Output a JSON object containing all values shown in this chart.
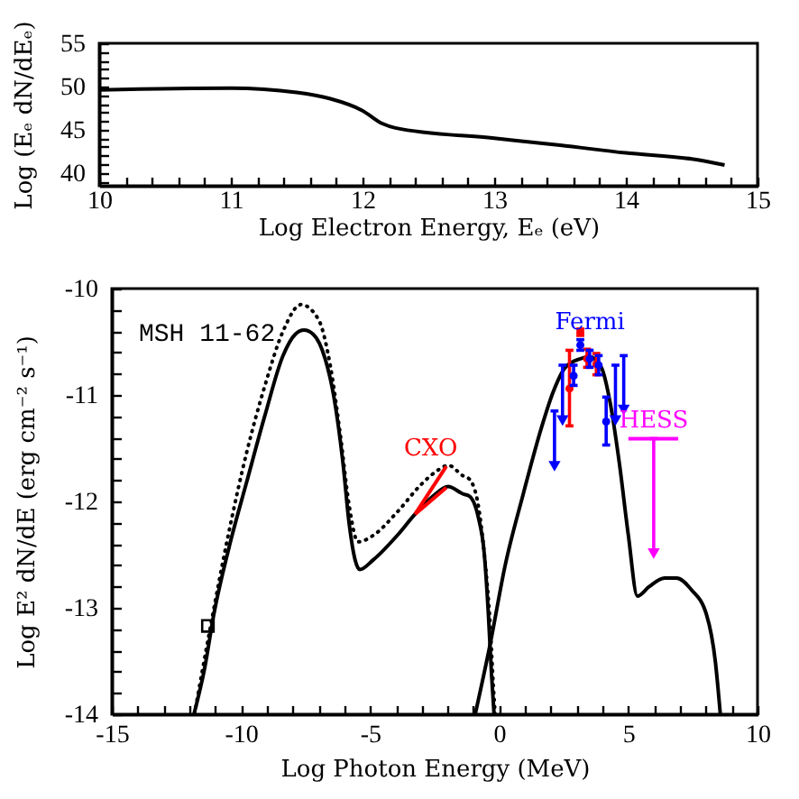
{
  "chart_data": [
    {
      "type": "line",
      "xlabel": "Log Electron Energy, Eₑ (eV)",
      "ylabel": "Log (Eₑ dN/dEₑ)",
      "xlim": [
        10,
        15
      ],
      "ylim": [
        38.5,
        55
      ],
      "xticks": [
        10,
        {
          "value": 10.2,
          "label": null
        },
        {
          "value": 10.4,
          "label": null
        },
        {
          "value": 10.6,
          "label": null
        },
        {
          "value": 10.8,
          "label": null
        },
        11,
        {
          "value": 11.2,
          "label": null
        },
        {
          "value": 11.4,
          "label": null
        },
        {
          "value": 11.6,
          "label": null
        },
        {
          "value": 11.8,
          "label": null
        },
        12,
        {
          "value": 12.2,
          "label": null
        },
        {
          "value": 12.4,
          "label": null
        },
        {
          "value": 12.6,
          "label": null
        },
        {
          "value": 12.8,
          "label": null
        },
        13,
        {
          "value": 13.2,
          "label": null
        },
        {
          "value": 13.4,
          "label": null
        },
        {
          "value": 13.6,
          "label": null
        },
        {
          "value": 13.8,
          "label": null
        },
        14,
        {
          "value": 14.2,
          "label": null
        },
        {
          "value": 14.4,
          "label": null
        },
        {
          "value": 14.6,
          "label": null
        },
        {
          "value": 14.8,
          "label": null
        },
        15
      ],
      "yticks": [
        {
          "value": 39,
          "label": null
        },
        40,
        {
          "value": 41,
          "label": null
        },
        {
          "value": 42,
          "label": null
        },
        {
          "value": 43,
          "label": null
        },
        {
          "value": 44,
          "label": null
        },
        45,
        {
          "value": 46,
          "label": null
        },
        {
          "value": 47,
          "label": null
        },
        {
          "value": 48,
          "label": null
        },
        {
          "value": 49,
          "label": null
        },
        50,
        {
          "value": 51,
          "label": null
        },
        {
          "value": 52,
          "label": null
        },
        {
          "value": 53,
          "label": null
        },
        {
          "value": 54,
          "label": null
        },
        55
      ],
      "x": [
        10.0,
        11.0,
        11.5,
        11.75,
        12.0,
        12.15,
        12.25,
        13.0,
        13.5,
        14.0,
        14.5,
        14.75
      ],
      "series": [
        {
          "color": "#000000",
          "values": [
            49.6,
            49.8,
            49.3,
            48.6,
            47.2,
            45.7,
            45.2,
            44.0,
            43.2,
            42.3,
            41.6,
            40.9
          ]
        }
      ]
    },
    {
      "type": "line",
      "xlabel": "Log Photon Energy (MeV)",
      "ylabel": "Log E² dN/dE (erg cm⁻² s⁻¹)",
      "xlim": [
        -15,
        10
      ],
      "ylim": [
        -14,
        -10
      ],
      "annotations": [
        "MSH 11-62"
      ],
      "xticks": [
        -15,
        {
          "value": -14,
          "label": null
        },
        {
          "value": -13,
          "label": null
        },
        {
          "value": -12,
          "label": null
        },
        {
          "value": -11,
          "label": null
        },
        -10,
        {
          "value": -9,
          "label": null
        },
        {
          "value": -8,
          "label": null
        },
        {
          "value": -7,
          "label": null
        },
        {
          "value": -6,
          "label": null
        },
        -5,
        {
          "value": -4,
          "label": null
        },
        {
          "value": -3,
          "label": null
        },
        {
          "value": -2,
          "label": null
        },
        {
          "value": -1,
          "label": null
        },
        0,
        {
          "value": 1,
          "label": null
        },
        {
          "value": 2,
          "label": null
        },
        {
          "value": 3,
          "label": null
        },
        {
          "value": 4,
          "label": null
        },
        5,
        {
          "value": 6,
          "label": null
        },
        {
          "value": 7,
          "label": null
        },
        {
          "value": 8,
          "label": null
        },
        {
          "value": 9,
          "label": null
        },
        10
      ],
      "yticks": [
        -14,
        {
          "value": -13.8,
          "label": null
        },
        {
          "value": -13.6,
          "label": null
        },
        {
          "value": -13.4,
          "label": null
        },
        {
          "value": -13.2,
          "label": null
        },
        -13,
        {
          "value": -12.8,
          "label": null
        },
        {
          "value": -12.6,
          "label": null
        },
        {
          "value": -12.4,
          "label": null
        },
        {
          "value": -12.2,
          "label": null
        },
        -12,
        {
          "value": -11.8,
          "label": null
        },
        {
          "value": -11.6,
          "label": null
        },
        {
          "value": -11.4,
          "label": null
        },
        {
          "value": -11.2,
          "label": null
        },
        -11,
        {
          "value": -10.8,
          "label": null
        },
        {
          "value": -10.6,
          "label": null
        },
        {
          "value": -10.4,
          "label": null
        },
        {
          "value": -10.2,
          "label": null
        },
        -10
      ],
      "series": [
        {
          "color": "#000000",
          "x": [
            -11.82,
            -11.4,
            -11.05,
            -10.47,
            -9.77,
            -9.07,
            -8.37,
            -7.9,
            -7.56,
            -7.2,
            -6.74,
            -6.4,
            -6.05,
            -5.81,
            -5.58,
            -5.4,
            -4.88,
            -3.95,
            -3.26,
            -2.56,
            -1.98,
            -1.4,
            -1.16,
            -0.81,
            -0.58,
            -0.42,
            -0.3,
            -0.2
          ],
          "values": [
            -14,
            -13.56,
            -13.06,
            -12.44,
            -11.81,
            -11.19,
            -10.63,
            -10.43,
            -10.39,
            -10.43,
            -10.66,
            -11.02,
            -11.64,
            -12.21,
            -12.55,
            -12.64,
            -12.55,
            -12.32,
            -12.12,
            -11.95,
            -11.86,
            -11.93,
            -11.95,
            -12.15,
            -12.49,
            -13.06,
            -13.62,
            -14
          ]
        },
        {
          "color": "#000000",
          "line_style": "dotted",
          "x": [
            -11.8,
            -11.16,
            -10.47,
            -9.77,
            -9.07,
            -8.37,
            -7.67,
            -7.0,
            -6.53,
            -6.16,
            -5.81,
            -5.47,
            -4.88,
            -3.95,
            -3.02,
            -2.33,
            -1.98,
            -1.4,
            -1.16,
            -0.81,
            -0.58,
            -0.35,
            -0.23,
            -0.16
          ],
          "values": [
            -14,
            -13.15,
            -12.29,
            -11.53,
            -10.91,
            -10.4,
            -10.15,
            -10.29,
            -10.74,
            -11.36,
            -12.04,
            -12.38,
            -12.32,
            -12.1,
            -11.84,
            -11.7,
            -11.66,
            -11.76,
            -11.79,
            -12.04,
            -12.49,
            -13.17,
            -13.73,
            -14
          ]
        },
        {
          "color": "#000000",
          "x": [
            -0.93,
            -0.35,
            0.23,
            0.93,
            1.63,
            2.09,
            2.56,
            3.14,
            3.49,
            3.95,
            4.3,
            4.65,
            5.0,
            5.35,
            5.81,
            6.4,
            6.86,
            7.44,
            8.02,
            8.37,
            8.56
          ],
          "values": [
            -14,
            -13.34,
            -12.6,
            -11.93,
            -11.31,
            -10.97,
            -10.74,
            -10.66,
            -10.64,
            -10.74,
            -11.08,
            -11.64,
            -12.32,
            -12.89,
            -12.8,
            -12.72,
            -12.72,
            -12.83,
            -13.06,
            -13.51,
            -14
          ]
        },
        {
          "type": "scatter",
          "marker": "square",
          "color": "#000000",
          "x": [
            -11.28
          ],
          "values": [
            -13.17
          ]
        },
        {
          "name": "CXO",
          "color": "#ff0000",
          "x": [
            -3.26,
            -2.05
          ],
          "values": [
            -12.12,
            -11.67
          ]
        },
        {
          "color": "#ff0000",
          "x": [
            -3.26,
            -2.05
          ],
          "values": [
            -12.12,
            -11.87
          ]
        },
        {
          "type": "scatter",
          "marker": "circle",
          "color": "#ff0000",
          "x": [
            2.72,
            3.14,
            3.4,
            3.76
          ],
          "values": [
            -10.94,
            -10.41,
            -10.66,
            -10.71
          ],
          "errors": [
            [
              -11.29,
              -10.58
            ],
            [
              -10.44,
              -10.38
            ],
            [
              -10.74,
              -10.57
            ],
            [
              -10.81,
              -10.61
            ]
          ]
        },
        {
          "type": "scatter",
          "marker": "circle",
          "name": "Fermi",
          "color": "#0000ff",
          "x": [
            2.88,
            3.14,
            3.5,
            3.85,
            4.14
          ],
          "values": [
            -10.82,
            -10.53,
            -10.66,
            -10.72,
            -11.25
          ],
          "errors": [
            [
              -10.91,
              -10.72
            ],
            [
              -10.58,
              -10.48
            ],
            [
              -10.74,
              -10.58
            ],
            [
              -10.81,
              -10.63
            ],
            [
              -11.47,
              -11.02
            ]
          ]
        },
        {
          "type": "scatter",
          "marker": "triangle",
          "color": "#0000ff",
          "x": [
            2.14,
            2.45,
            4.5,
            4.82
          ],
          "values": [
            -11.67,
            -11.24,
            -11.24,
            -11.14
          ],
          "errors": [
            [
              -11.67,
              -11.15
            ],
            [
              -11.24,
              -10.72
            ],
            [
              -11.24,
              -10.72
            ],
            [
              -11.14,
              -10.63
            ]
          ]
        },
        {
          "color": "#ff00ff",
          "x": [
            5.0,
            6.93
          ],
          "values": [
            -11.41,
            -11.41
          ]
        },
        {
          "type": "scatter",
          "marker": "triangle",
          "name": "HESS",
          "color": "#ff00ff",
          "x": [
            5.98
          ],
          "values": [
            -12.49
          ],
          "errors": [
            [
              -12.49,
              -11.41
            ]
          ]
        }
      ]
    }
  ]
}
